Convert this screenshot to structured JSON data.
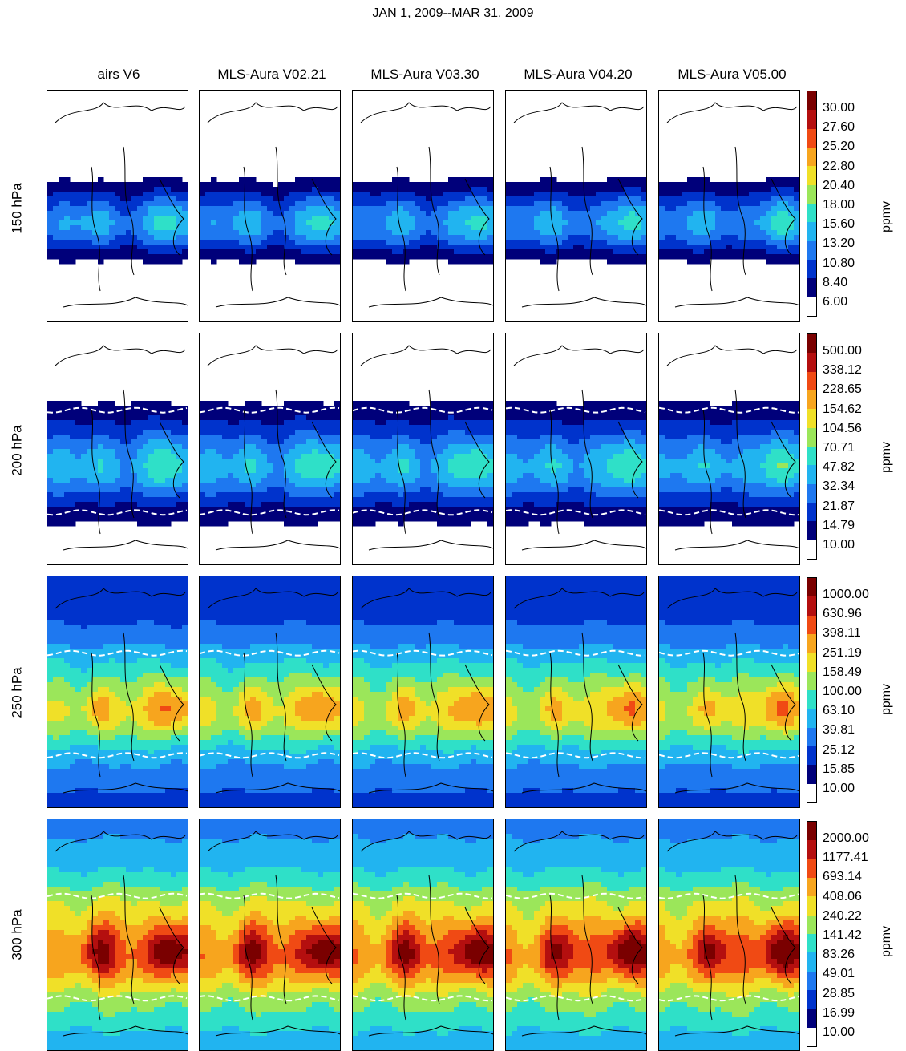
{
  "title": "JAN  1, 2009--MAR 31, 2009",
  "columns": [
    "airs V6",
    "MLS-Aura V02.21",
    "MLS-Aura V03.30",
    "MLS-Aura V04.20",
    "MLS-Aura V05.00"
  ],
  "rows": [
    {
      "label": "150 hPa",
      "unit": "ppmv",
      "levels": [
        "30.00",
        "27.60",
        "25.20",
        "22.80",
        "20.40",
        "18.00",
        "15.60",
        "13.20",
        "10.80",
        "8.40",
        "6.00"
      ]
    },
    {
      "label": "200 hPa",
      "unit": "ppmv",
      "levels": [
        "500.00",
        "338.12",
        "228.65",
        "154.62",
        "104.56",
        "70.71",
        "47.82",
        "32.34",
        "21.87",
        "14.79",
        "10.00"
      ]
    },
    {
      "label": "250 hPa",
      "unit": "ppmv",
      "levels": [
        "1000.00",
        "630.96",
        "398.11",
        "251.19",
        "158.49",
        "100.00",
        "63.10",
        "39.81",
        "25.12",
        "15.85",
        "10.00"
      ]
    },
    {
      "label": "300 hPa",
      "unit": "ppmv",
      "levels": [
        "2000.00",
        "1177.41",
        "693.14",
        "408.06",
        "240.22",
        "141.42",
        "83.26",
        "49.01",
        "28.85",
        "16.99",
        "10.00"
      ]
    }
  ],
  "colorscale": [
    "#ffffff",
    "#00007a",
    "#0033cc",
    "#1e78f0",
    "#21b4f0",
    "#2fe0c8",
    "#9be65a",
    "#f0e028",
    "#f7a51e",
    "#f04a14",
    "#b40f0f",
    "#7a0000"
  ]
}
